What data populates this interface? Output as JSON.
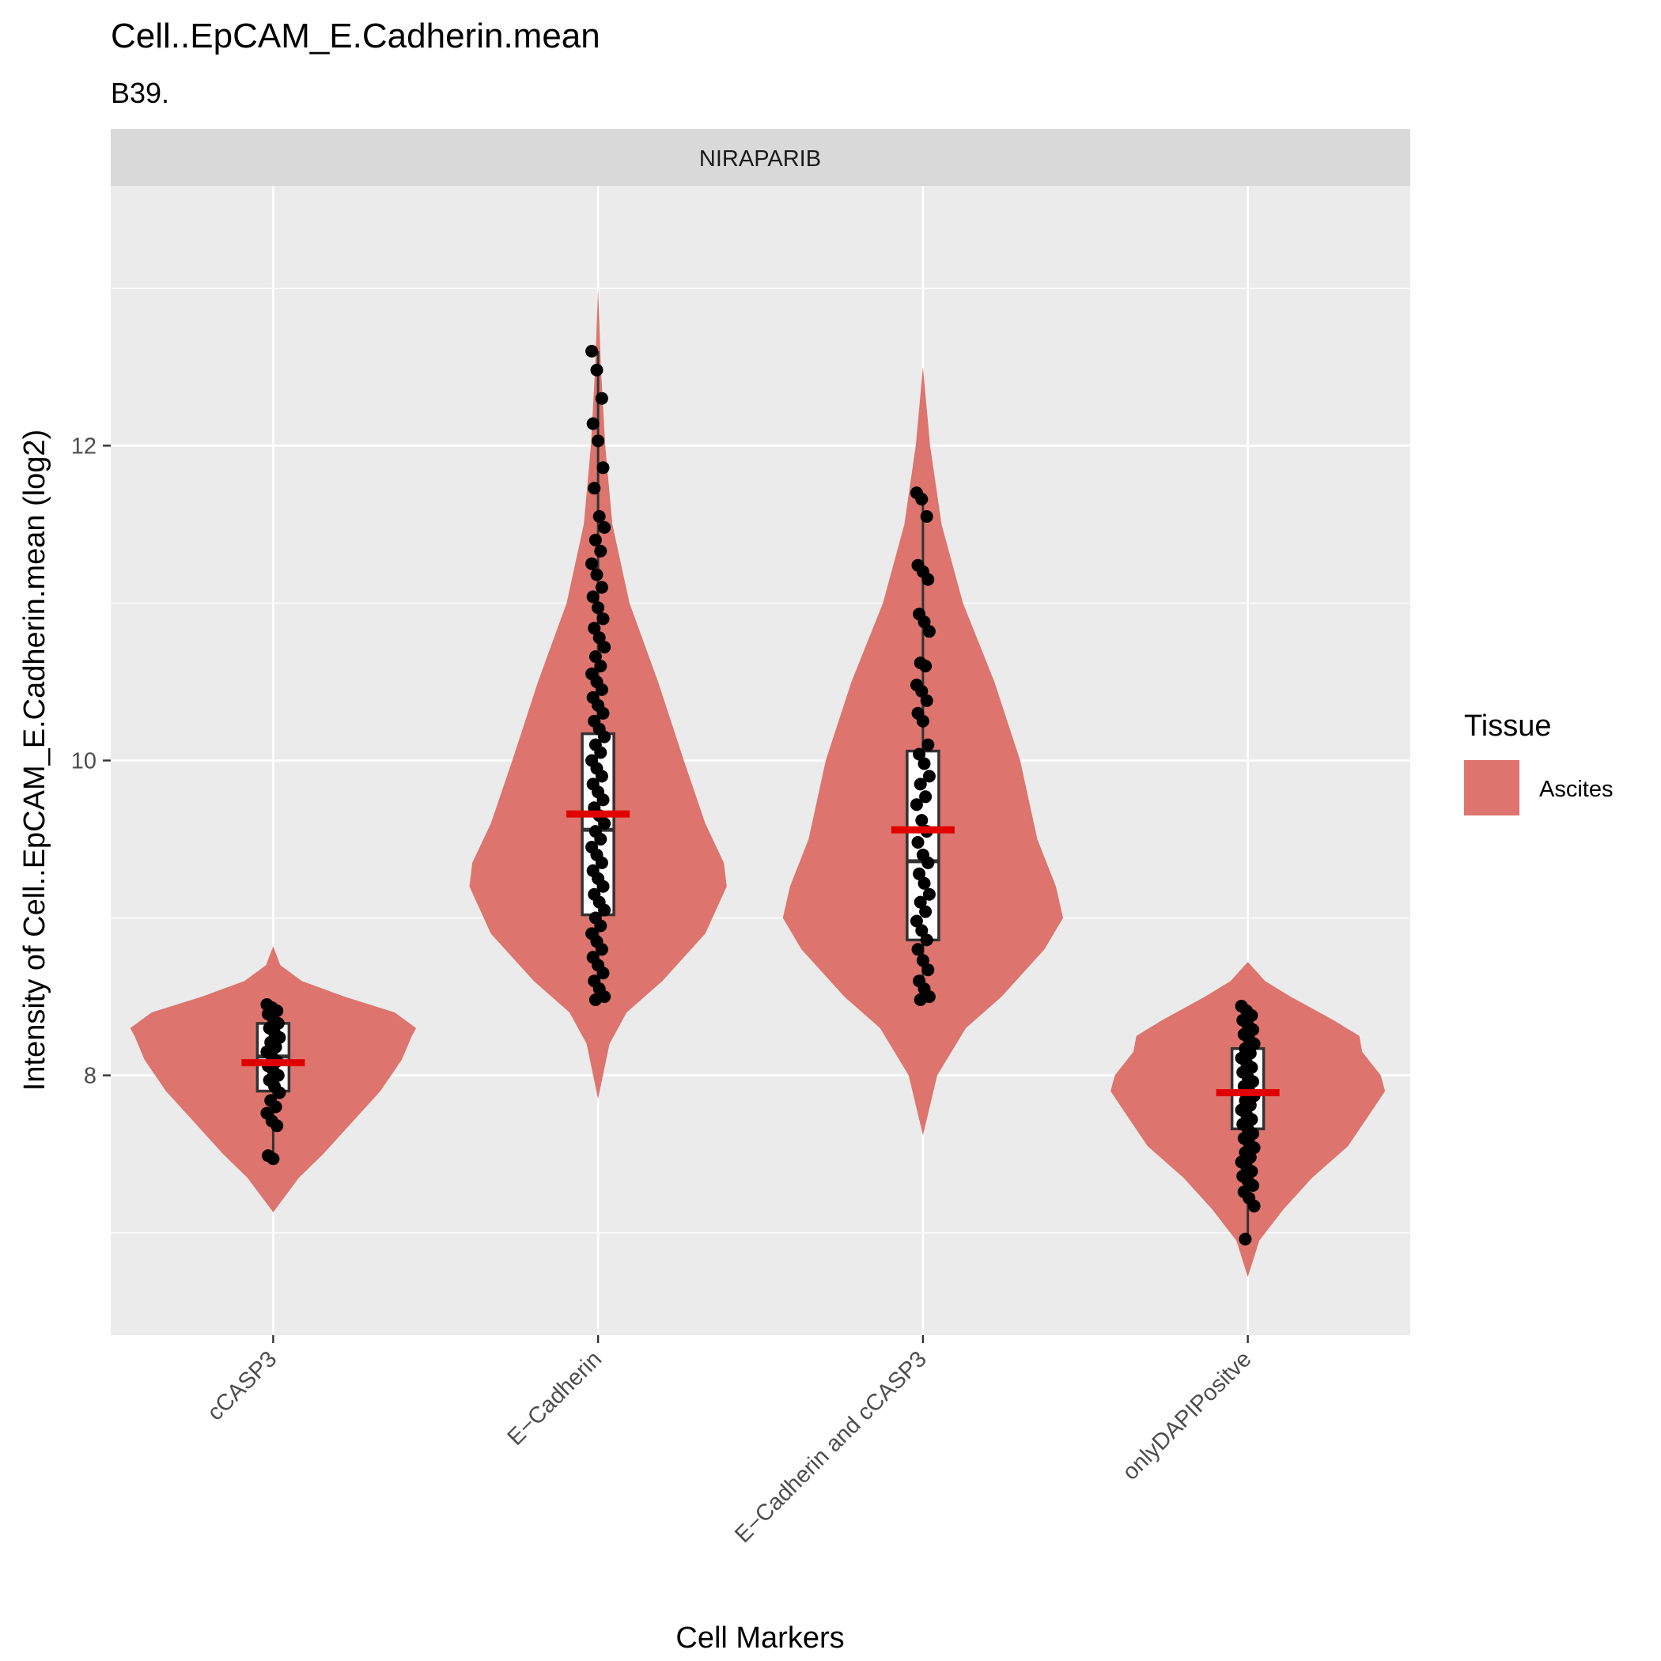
{
  "chart_data": {
    "type": "violin",
    "title": "Cell..EpCAM_E.Cadherin.mean",
    "subtitle": "B39.",
    "facet": "NIRAPARIB",
    "xlabel": "Cell Markers",
    "ylabel": "Intensity of Cell..EpCAM_E.Cadherin.mean (log2)",
    "ylim": [
      6.35,
      13.65
    ],
    "yticks": [
      8,
      10,
      12
    ],
    "legend": {
      "title": "Tissue",
      "placement": "right",
      "entries": [
        {
          "label": "Ascites",
          "color": "#DD746D"
        }
      ]
    },
    "colors": {
      "violin": "#DD746D",
      "mean": "#E00000",
      "panel": "#EBEBEB",
      "grid": "#FFFFFF",
      "strip": "#D9D9D9",
      "point": "#000000"
    },
    "categories": [
      "cCASP3",
      "E−Cadherin",
      "E−Cadherin and cCASP3",
      "onlyDAPIPositve"
    ],
    "groups": [
      {
        "name": "cCASP3",
        "mean": 8.08,
        "box": {
          "q1": 7.9,
          "median": 8.12,
          "q3": 8.33,
          "whisker_low": 7.47,
          "whisker_high": 8.45
        },
        "violin": [
          [
            7.13,
            0.0
          ],
          [
            7.35,
            0.18
          ],
          [
            7.5,
            0.35
          ],
          [
            7.7,
            0.55
          ],
          [
            7.9,
            0.75
          ],
          [
            8.1,
            0.9
          ],
          [
            8.25,
            0.97
          ],
          [
            8.3,
            1.0
          ],
          [
            8.4,
            0.85
          ],
          [
            8.5,
            0.5
          ],
          [
            8.6,
            0.2
          ],
          [
            8.7,
            0.05
          ],
          [
            8.82,
            0.0
          ]
        ],
        "points": [
          8.45,
          8.43,
          8.41,
          8.39,
          8.36,
          8.33,
          8.3,
          8.27,
          8.24,
          8.21,
          8.18,
          8.15,
          8.12,
          8.09,
          8.06,
          8.03,
          8.0,
          7.97,
          7.93,
          7.89,
          7.84,
          7.8,
          7.76,
          7.71,
          7.68,
          7.49,
          7.47
        ]
      },
      {
        "name": "E−Cadherin",
        "mean": 9.66,
        "box": {
          "q1": 9.02,
          "median": 9.56,
          "q3": 10.17,
          "whisker_low": 8.48,
          "whisker_high": 12.6
        },
        "violin": [
          [
            7.85,
            0.0
          ],
          [
            8.2,
            0.08
          ],
          [
            8.4,
            0.2
          ],
          [
            8.6,
            0.45
          ],
          [
            8.9,
            0.75
          ],
          [
            9.2,
            0.9
          ],
          [
            9.35,
            0.88
          ],
          [
            9.6,
            0.75
          ],
          [
            10.0,
            0.6
          ],
          [
            10.5,
            0.42
          ],
          [
            11.0,
            0.22
          ],
          [
            11.5,
            0.1
          ],
          [
            12.0,
            0.05
          ],
          [
            12.5,
            0.02
          ],
          [
            13.0,
            0.0
          ]
        ],
        "points": [
          12.6,
          12.48,
          12.3,
          12.14,
          12.03,
          11.86,
          11.73,
          11.55,
          11.48,
          11.4,
          11.33,
          11.25,
          11.18,
          11.1,
          11.04,
          10.97,
          10.9,
          10.84,
          10.78,
          10.72,
          10.66,
          10.6,
          10.55,
          10.5,
          10.45,
          10.4,
          10.35,
          10.3,
          10.25,
          10.2,
          10.15,
          10.1,
          10.05,
          10.0,
          9.95,
          9.9,
          9.85,
          9.8,
          9.75,
          9.7,
          9.65,
          9.6,
          9.55,
          9.5,
          9.45,
          9.4,
          9.35,
          9.3,
          9.25,
          9.2,
          9.15,
          9.1,
          9.05,
          9.0,
          8.95,
          8.9,
          8.85,
          8.8,
          8.75,
          8.7,
          8.65,
          8.6,
          8.55,
          8.5,
          8.48
        ]
      },
      {
        "name": "E−Cadherin and cCASP3",
        "mean": 9.56,
        "box": {
          "q1": 8.86,
          "median": 9.36,
          "q3": 10.06,
          "whisker_low": 8.48,
          "whisker_high": 11.7
        },
        "violin": [
          [
            7.62,
            0.0
          ],
          [
            8.0,
            0.1
          ],
          [
            8.3,
            0.3
          ],
          [
            8.5,
            0.55
          ],
          [
            8.8,
            0.85
          ],
          [
            9.0,
            0.98
          ],
          [
            9.2,
            0.93
          ],
          [
            9.5,
            0.8
          ],
          [
            10.0,
            0.68
          ],
          [
            10.5,
            0.5
          ],
          [
            11.0,
            0.28
          ],
          [
            11.5,
            0.13
          ],
          [
            12.0,
            0.05
          ],
          [
            12.5,
            0.0
          ]
        ],
        "points": [
          11.7,
          11.66,
          11.55,
          11.24,
          11.2,
          11.15,
          10.93,
          10.88,
          10.82,
          10.62,
          10.6,
          10.48,
          10.44,
          10.38,
          10.3,
          10.25,
          10.1,
          10.04,
          9.98,
          9.9,
          9.85,
          9.77,
          9.72,
          9.62,
          9.55,
          9.48,
          9.4,
          9.35,
          9.28,
          9.22,
          9.15,
          9.1,
          9.04,
          8.98,
          8.92,
          8.86,
          8.8,
          8.73,
          8.67,
          8.6,
          8.55,
          8.5,
          8.48
        ]
      },
      {
        "name": "onlyDAPIPositve",
        "mean": 7.89,
        "box": {
          "q1": 7.66,
          "median": 7.9,
          "q3": 8.17,
          "whisker_low": 6.96,
          "whisker_high": 8.44
        },
        "violin": [
          [
            6.72,
            0.0
          ],
          [
            6.95,
            0.08
          ],
          [
            7.15,
            0.25
          ],
          [
            7.35,
            0.45
          ],
          [
            7.55,
            0.7
          ],
          [
            7.75,
            0.85
          ],
          [
            7.9,
            0.96
          ],
          [
            8.0,
            0.93
          ],
          [
            8.15,
            0.8
          ],
          [
            8.25,
            0.78
          ],
          [
            8.35,
            0.6
          ],
          [
            8.5,
            0.3
          ],
          [
            8.6,
            0.12
          ],
          [
            8.72,
            0.0
          ]
        ],
        "points": [
          8.44,
          8.41,
          8.38,
          8.35,
          8.32,
          8.29,
          8.26,
          8.23,
          8.2,
          8.17,
          8.14,
          8.11,
          8.08,
          8.05,
          8.02,
          7.99,
          7.96,
          7.93,
          7.9,
          7.87,
          7.84,
          7.81,
          7.78,
          7.75,
          7.72,
          7.69,
          7.66,
          7.63,
          7.6,
          7.57,
          7.54,
          7.51,
          7.48,
          7.45,
          7.42,
          7.39,
          7.36,
          7.33,
          7.3,
          7.26,
          7.22,
          7.17,
          6.96
        ]
      }
    ]
  }
}
